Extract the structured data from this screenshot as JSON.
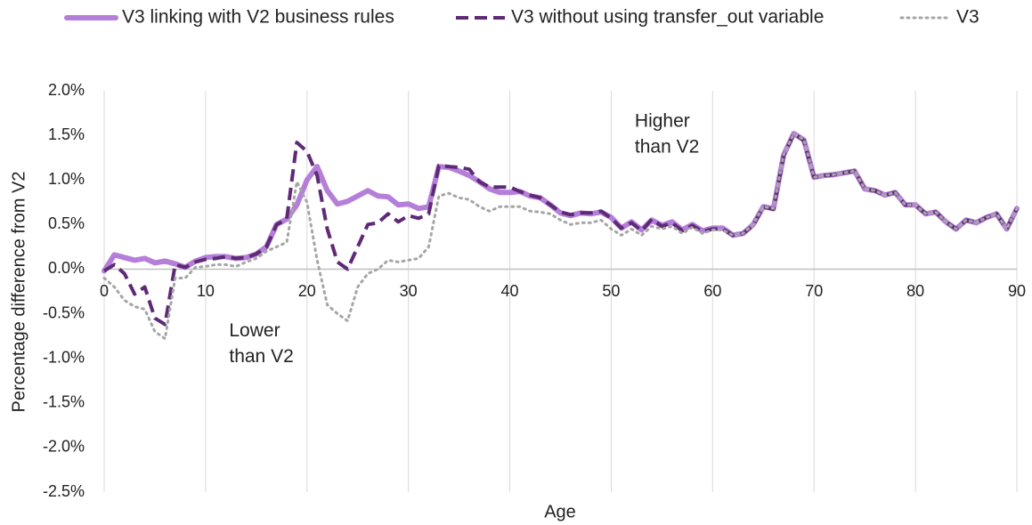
{
  "chart_data": {
    "type": "line",
    "xlabel": "Age",
    "ylabel": "Percentage difference from V2",
    "x": [
      0,
      1,
      2,
      3,
      4,
      5,
      6,
      7,
      8,
      9,
      10,
      11,
      12,
      13,
      14,
      15,
      16,
      17,
      18,
      19,
      20,
      21,
      22,
      23,
      24,
      25,
      26,
      27,
      28,
      29,
      30,
      31,
      32,
      33,
      34,
      35,
      36,
      37,
      38,
      39,
      40,
      41,
      42,
      43,
      44,
      45,
      46,
      47,
      48,
      49,
      50,
      51,
      52,
      53,
      54,
      55,
      56,
      57,
      58,
      59,
      60,
      61,
      62,
      63,
      64,
      65,
      66,
      67,
      68,
      69,
      70,
      71,
      72,
      73,
      74,
      75,
      76,
      77,
      78,
      79,
      80,
      81,
      82,
      83,
      84,
      85,
      86,
      87,
      88,
      89,
      90
    ],
    "series": [
      {
        "name": "V3 linking with V2 business rules",
        "color": "#b57fd9",
        "style": "solid",
        "values": [
          -0.02,
          0.16,
          0.13,
          0.1,
          0.12,
          0.07,
          0.09,
          0.06,
          0.02,
          0.09,
          0.13,
          0.14,
          0.14,
          0.12,
          0.13,
          0.17,
          0.25,
          0.5,
          0.56,
          0.72,
          1.0,
          1.15,
          0.88,
          0.73,
          0.76,
          0.82,
          0.88,
          0.82,
          0.81,
          0.72,
          0.73,
          0.68,
          0.7,
          1.15,
          1.14,
          1.1,
          1.05,
          0.98,
          0.9,
          0.86,
          0.86,
          0.87,
          0.82,
          0.8,
          0.72,
          0.63,
          0.6,
          0.63,
          0.62,
          0.64,
          0.58,
          0.46,
          0.53,
          0.44,
          0.55,
          0.49,
          0.53,
          0.44,
          0.5,
          0.43,
          0.46,
          0.46,
          0.38,
          0.4,
          0.5,
          0.7,
          0.68,
          1.28,
          1.52,
          1.45,
          1.03,
          1.05,
          1.06,
          1.08,
          1.1,
          0.9,
          0.88,
          0.83,
          0.86,
          0.72,
          0.72,
          0.62,
          0.64,
          0.53,
          0.45,
          0.55,
          0.52,
          0.58,
          0.62,
          0.45,
          0.68
        ]
      },
      {
        "name": "V3 without using transfer_out variable",
        "color": "#5e2a75",
        "style": "dashed",
        "values": [
          -0.02,
          0.05,
          -0.05,
          -0.28,
          -0.2,
          -0.55,
          -0.62,
          0.05,
          0.02,
          0.08,
          0.11,
          0.12,
          0.14,
          0.12,
          0.13,
          0.17,
          0.25,
          0.5,
          0.56,
          1.42,
          1.32,
          1.05,
          0.45,
          0.08,
          0.0,
          0.25,
          0.5,
          0.52,
          0.62,
          0.53,
          0.6,
          0.57,
          0.62,
          1.16,
          1.15,
          1.14,
          1.12,
          0.98,
          0.92,
          0.92,
          0.92,
          0.87,
          0.83,
          0.8,
          0.72,
          0.64,
          0.61,
          0.63,
          0.63,
          0.65,
          0.57,
          0.46,
          0.52,
          0.43,
          0.56,
          0.48,
          0.52,
          0.43,
          0.49,
          0.42,
          0.45,
          0.45,
          0.38,
          0.4,
          0.49,
          0.7,
          0.67,
          1.27,
          1.52,
          1.44,
          1.03,
          1.05,
          1.06,
          1.08,
          1.1,
          0.9,
          0.88,
          0.83,
          0.86,
          0.72,
          0.72,
          0.62,
          0.64,
          0.53,
          0.45,
          0.55,
          0.52,
          0.58,
          0.62,
          0.45,
          0.68
        ]
      },
      {
        "name": "V3",
        "color": "#a6a6a6",
        "style": "dotted",
        "values": [
          -0.1,
          -0.2,
          -0.35,
          -0.42,
          -0.45,
          -0.7,
          -0.78,
          -0.1,
          -0.1,
          0.02,
          0.03,
          0.05,
          0.05,
          0.03,
          0.08,
          0.12,
          0.2,
          0.25,
          0.3,
          0.98,
          0.75,
          0.1,
          -0.4,
          -0.5,
          -0.58,
          -0.2,
          -0.05,
          0.0,
          0.1,
          0.08,
          0.1,
          0.12,
          0.25,
          0.82,
          0.85,
          0.8,
          0.78,
          0.7,
          0.65,
          0.7,
          0.7,
          0.7,
          0.65,
          0.64,
          0.62,
          0.55,
          0.5,
          0.52,
          0.52,
          0.55,
          0.45,
          0.38,
          0.45,
          0.38,
          0.48,
          0.45,
          0.48,
          0.4,
          0.47,
          0.4,
          0.44,
          0.44,
          0.38,
          0.4,
          0.5,
          0.7,
          0.68,
          1.28,
          1.52,
          1.45,
          1.03,
          1.05,
          1.06,
          1.08,
          1.1,
          0.9,
          0.88,
          0.83,
          0.86,
          0.72,
          0.72,
          0.62,
          0.64,
          0.53,
          0.45,
          0.55,
          0.52,
          0.58,
          0.62,
          0.45,
          0.68
        ]
      }
    ],
    "xlim": [
      0,
      90
    ],
    "xticks": [
      0,
      10,
      20,
      30,
      40,
      50,
      60,
      70,
      80,
      90
    ],
    "ylim": [
      -2.5,
      2.0
    ],
    "yticks": [
      {
        "value": -2.5,
        "label": "-2.5%"
      },
      {
        "value": -2.0,
        "label": "-2.0%"
      },
      {
        "value": -1.5,
        "label": "-1.5%"
      },
      {
        "value": -1.0,
        "label": "-1.0%"
      },
      {
        "value": -0.5,
        "label": "-0.5%"
      },
      {
        "value": 0,
        "label": "0.0%"
      },
      {
        "value": 0.5,
        "label": "0.5%"
      },
      {
        "value": 1.0,
        "label": "1.0%"
      },
      {
        "value": 1.5,
        "label": "1.5%"
      },
      {
        "value": 2.0,
        "label": "2.0%"
      }
    ],
    "grid": "x",
    "legend": "top",
    "annotations": [
      {
        "lines": [
          "Higher",
          "than V2"
        ],
        "x": 52.5,
        "y": 1.5
      },
      {
        "lines": [
          "Lower",
          "than V2"
        ],
        "x": 12.5,
        "y": -0.85
      }
    ]
  }
}
